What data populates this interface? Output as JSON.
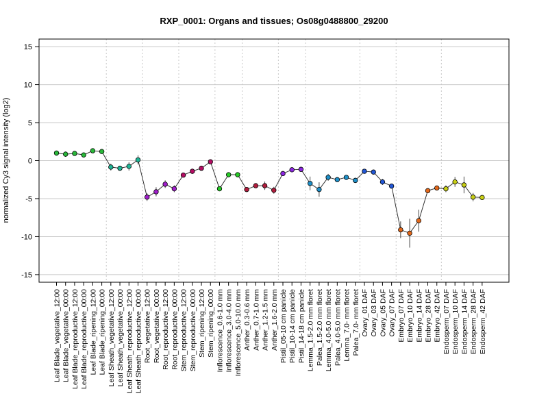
{
  "chart_data": {
    "type": "line",
    "title": "RXP_0001: Organs and tissues; Os08g0488800_29200",
    "xlabel": "",
    "ylabel": "normalized Cy3 signal intensity (log2)",
    "ylim": [
      -16,
      16
    ],
    "yticks": [
      -15,
      -10,
      -5,
      0,
      5,
      10,
      15
    ],
    "grid": true,
    "categories": [
      "Leaf Blade_vegetative_12:00",
      "Leaf Blade_vegetative_00:00",
      "Leaf Blade_reproductive_12:00",
      "Leaf Blade_reproductive_00:00",
      "Leaf Blade_ripening_12:00",
      "Leaf Blade_ripening_00:00",
      "Leaf Sheath_vegetative_12:00",
      "Leaf Sheath_vegetative_00:00",
      "Leaf Sheath_reproductive_12:00",
      "Leaf Sheath_reproductive_00:00",
      "Root_vegetative_12:00",
      "Root_vegetative_00:00",
      "Root_reproductive_12:00",
      "Root_reproductive_00:00",
      "Stem_reproductive_12:00",
      "Stem_reproductive_00:00",
      "Stem_ripening_12:00",
      "Stem_ripening_00:00",
      "Inflorescence_0.6-1.0 mm",
      "Inflorescence_3.0-4.0 mm",
      "Inflorescence_5.0-10.0 mm",
      "Anther_0.3-0.6 mm",
      "Anther_0.7-1.0 mm",
      "Anther_1.2-1.5 mm",
      "Anther_1.6-2.0 mm",
      "Pistil_05-10 cm panicle",
      "Pistil_10-14 cm panicle",
      "Pistil_14-18 cm panicle",
      "Lemma_1.5-2.0 mm floret",
      "Palea_1.5-2.0 mm floret",
      "Lemma_4.0-5.0 mm floret",
      "Palea_4.0-5.0 mm floret",
      "Lemma_7.0- mm floret",
      "Palea_7.0- mm floret",
      "Ovary_01 DAF",
      "Ovary_03 DAF",
      "Ovary_05 DAF",
      "Ovary_07 DAF",
      "Embryo_07 DAF",
      "Embryo_10 DAF",
      "Embryo_14 DAF",
      "Embryo_28 DAF",
      "Embryo_42 DAF",
      "Endosperm_07 DAF",
      "Endosperm_10 DAF",
      "Endosperm_14 DAF",
      "Endosperm_28 DAF",
      "Endosperm_42 DAF"
    ],
    "series": [
      {
        "values": [
          1.0,
          0.85,
          0.95,
          0.75,
          1.3,
          1.2,
          -0.85,
          -1.0,
          -0.75,
          0.1,
          -4.8,
          -4.1,
          -3.1,
          -3.7,
          -1.9,
          -1.4,
          -1.0,
          -0.15,
          -3.7,
          -1.85,
          -1.85,
          -3.8,
          -3.3,
          -3.3,
          -3.9,
          -1.7,
          -1.2,
          -1.15,
          -3.0,
          -3.8,
          -2.2,
          -2.5,
          -2.2,
          -2.6,
          -1.4,
          -1.5,
          -2.8,
          -3.35,
          -9.1,
          -9.55,
          -7.9,
          -3.95,
          -3.6,
          -3.7,
          -2.8,
          -3.2,
          -4.8,
          -4.85
        ],
        "errors": [
          0.2,
          0.35,
          0.2,
          0.2,
          0.2,
          0.2,
          0.45,
          0.3,
          0.55,
          0.6,
          0.5,
          0.6,
          0.5,
          0.45,
          0.3,
          0.35,
          0.3,
          0.3,
          0.2,
          0.25,
          0.2,
          0.3,
          0.3,
          0.55,
          0.45,
          0.25,
          0.25,
          0.3,
          0.9,
          0.95,
          0.45,
          0.3,
          0.3,
          0.35,
          0.25,
          0.2,
          0.4,
          0.3,
          1.1,
          1.9,
          1.45,
          0.3,
          0.25,
          0.45,
          0.65,
          1.1,
          0.55,
          0.3
        ],
        "colors": [
          "#29b83a",
          "#29b83a",
          "#29b83a",
          "#29b83a",
          "#29b83a",
          "#29b83a",
          "#1fb596",
          "#1fb596",
          "#1fb596",
          "#1fb596",
          "#a11fcb",
          "#a11fcb",
          "#a11fcb",
          "#a11fcb",
          "#b30d63",
          "#b30d63",
          "#b30d63",
          "#b30d63",
          "#27cb27",
          "#27cb27",
          "#27cb27",
          "#b01d3d",
          "#b01d3d",
          "#b01d3d",
          "#b01d3d",
          "#8c28e0",
          "#8c28e0",
          "#8c28e0",
          "#1d8fc8",
          "#1d8fc8",
          "#1d8fc8",
          "#1d8fc8",
          "#1d8fc8",
          "#1d8fc8",
          "#2257d5",
          "#2257d5",
          "#2257d5",
          "#2257d5",
          "#e3681b",
          "#e3681b",
          "#e3681b",
          "#e3681b",
          "#e3681b",
          "#c8cf15",
          "#c8cf15",
          "#c8cf15",
          "#c8cf15",
          "#c8cf15"
        ]
      }
    ],
    "group_separators_after": [
      5,
      9,
      13,
      17,
      20,
      24,
      27,
      33,
      37,
      42
    ]
  }
}
